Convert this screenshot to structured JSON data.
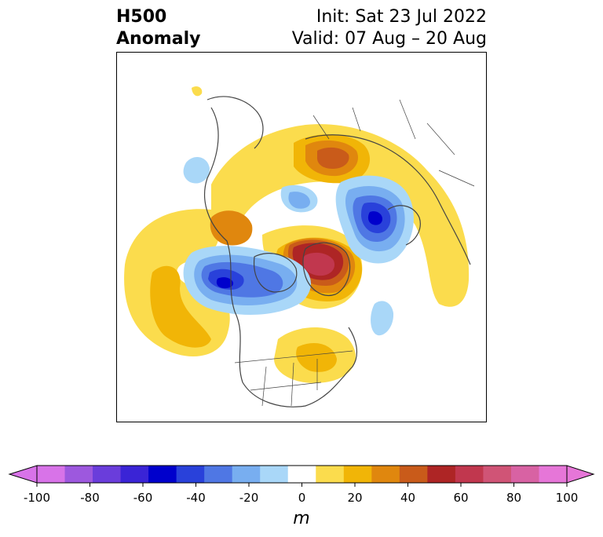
{
  "title": {
    "variable": "H500",
    "field": "Anomaly",
    "init": "Init: Sat 23 Jul 2022",
    "valid": "Valid: 07 Aug – 20 Aug"
  },
  "colorbar": {
    "unit": "m",
    "ticks": [
      "-100",
      "-80",
      "-60",
      "-40",
      "-20",
      "0",
      "20",
      "40",
      "60",
      "80",
      "100"
    ],
    "levels": [
      -100,
      -90,
      -80,
      -70,
      -60,
      -50,
      -40,
      -30,
      -20,
      -10,
      10,
      20,
      30,
      40,
      50,
      60,
      70,
      80,
      90,
      100
    ],
    "colors": [
      "#d873e8",
      "#9d58de",
      "#6a3ddb",
      "#3a24d6",
      "#0000cc",
      "#2941da",
      "#4f77e4",
      "#78aef0",
      "#a9d7f8",
      "#ffffff",
      "#fbdc4d",
      "#f1b507",
      "#e0870e",
      "#c95b1a",
      "#ae2525",
      "#c1374e",
      "#d05476",
      "#d862a3",
      "#e676d8"
    ],
    "extend_low_color": "#d873e8",
    "extend_high_color": "#e676d8"
  }
}
